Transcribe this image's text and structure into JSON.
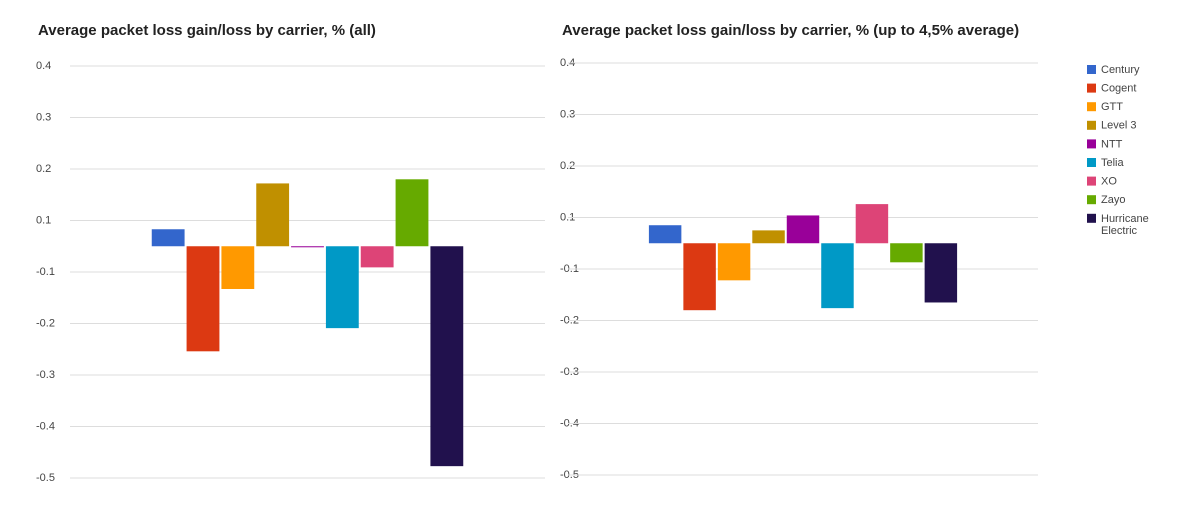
{
  "chart_data": [
    {
      "type": "bar",
      "title": "Average packet loss gain/loss by carrier, % (all)",
      "categories": [
        null
      ],
      "ylim": [
        -0.45,
        0.35
      ],
      "yticks": [
        {
          "value": 0.35,
          "label": "0.4"
        },
        {
          "value": 0.25,
          "label": "0.3"
        },
        {
          "value": 0.15,
          "label": "0.2"
        },
        {
          "value": 0.05,
          "label": "0.1"
        },
        {
          "value": -0.05,
          "label": "-0.1"
        },
        {
          "value": -0.15,
          "label": "-0.2"
        },
        {
          "value": -0.25,
          "label": "-0.3"
        },
        {
          "value": -0.35,
          "label": "-0.4"
        },
        {
          "value": -0.45,
          "label": "-0.5"
        }
      ],
      "grid": true,
      "legend": "none",
      "series": [
        {
          "name": "Century",
          "color": "#3366cc",
          "values": [
            0.033
          ]
        },
        {
          "name": "Cogent",
          "color": "#dc3912",
          "values": [
            -0.204
          ]
        },
        {
          "name": "GTT",
          "color": "#ff9900",
          "values": [
            -0.083
          ]
        },
        {
          "name": "Level 3",
          "color": "#c09000",
          "values": [
            0.122
          ]
        },
        {
          "name": "NTT",
          "color": "#990099",
          "values": [
            -0.002
          ]
        },
        {
          "name": "Telia",
          "color": "#0099c6",
          "values": [
            -0.159
          ]
        },
        {
          "name": "XO",
          "color": "#dd4477",
          "values": [
            -0.041
          ]
        },
        {
          "name": "Zayo",
          "color": "#66aa00",
          "values": [
            0.13
          ]
        },
        {
          "name": "Hurricane Electric",
          "color": "#21114d",
          "values": [
            -0.427
          ]
        }
      ]
    },
    {
      "type": "bar",
      "title": "Average packet loss gain/loss by carrier, % (up to 4,5% average)",
      "categories": [
        null
      ],
      "ylim": [
        -0.45,
        0.35
      ],
      "yticks": [
        {
          "value": 0.35,
          "label": "0.4"
        },
        {
          "value": 0.25,
          "label": "0.3"
        },
        {
          "value": 0.15,
          "label": "0.2"
        },
        {
          "value": 0.05,
          "label": "0.1"
        },
        {
          "value": -0.05,
          "label": "-0.1"
        },
        {
          "value": -0.15,
          "label": "-0.2"
        },
        {
          "value": -0.25,
          "label": "-0.3"
        },
        {
          "value": -0.35,
          "label": "-0.4"
        },
        {
          "value": -0.45,
          "label": "-0.5"
        }
      ],
      "grid": true,
      "legend": "right",
      "series": [
        {
          "name": "Century",
          "color": "#3366cc",
          "values": [
            0.035
          ]
        },
        {
          "name": "Cogent",
          "color": "#dc3912",
          "values": [
            -0.13
          ]
        },
        {
          "name": "GTT",
          "color": "#ff9900",
          "values": [
            -0.072
          ]
        },
        {
          "name": "Level 3",
          "color": "#c09000",
          "values": [
            0.025
          ]
        },
        {
          "name": "NTT",
          "color": "#990099",
          "values": [
            0.054
          ]
        },
        {
          "name": "Telia",
          "color": "#0099c6",
          "values": [
            -0.126
          ]
        },
        {
          "name": "XO",
          "color": "#dd4477",
          "values": [
            0.076
          ]
        },
        {
          "name": "Zayo",
          "color": "#66aa00",
          "values": [
            -0.037
          ]
        },
        {
          "name": "Hurricane Electric",
          "color": "#21114d",
          "values": [
            -0.115
          ]
        }
      ]
    }
  ]
}
